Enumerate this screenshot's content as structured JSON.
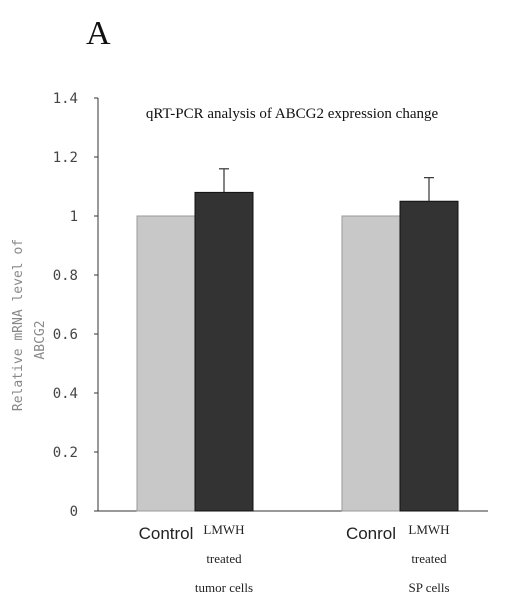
{
  "panel_label": "A",
  "chart_data": {
    "type": "bar",
    "title": "qRT-PCR analysis of ABCG2 expression change",
    "ylabel_line1": "Relative mRNA level of",
    "ylabel_line2": "ABCG2",
    "ylim": [
      0,
      1.4
    ],
    "yticks": [
      "0",
      "0.2",
      "0.4",
      "0.6",
      "0.8",
      "1",
      "1.2",
      "1.4"
    ],
    "groups": [
      {
        "control_label": "Control",
        "treated_label_lines": [
          "LMWH",
          "treated",
          "tumor cells"
        ],
        "control_value": 1.0,
        "treated_value": 1.08,
        "treated_error": 0.08
      },
      {
        "control_label": "Conrol",
        "treated_label_lines": [
          "LMWH",
          "treated",
          "SP cells"
        ],
        "control_value": 1.0,
        "treated_value": 1.05,
        "treated_error": 0.08
      }
    ],
    "colors": {
      "control": "#c8c8c8",
      "treated": "#333333"
    }
  }
}
